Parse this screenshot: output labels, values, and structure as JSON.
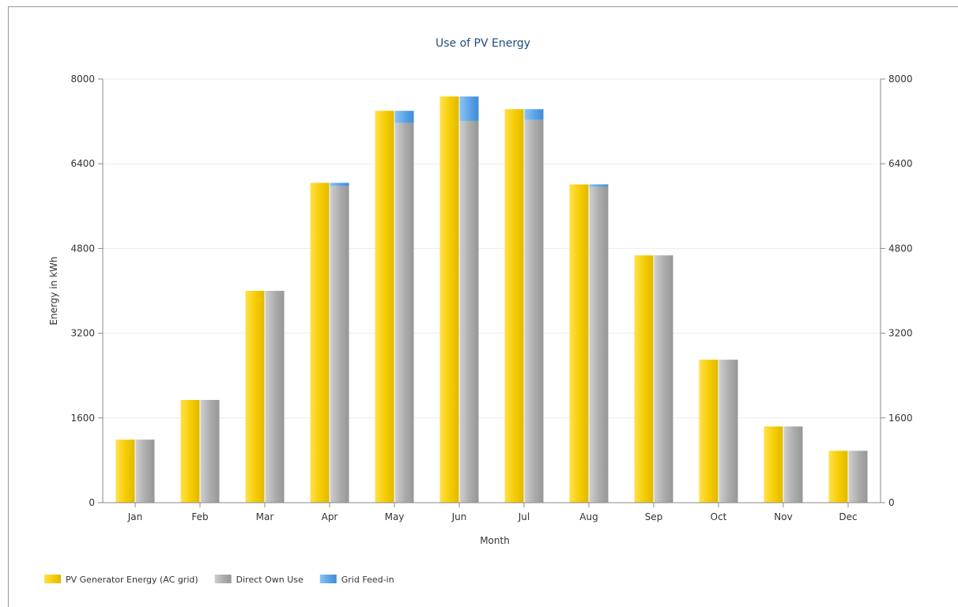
{
  "chart_data": {
    "type": "bar",
    "title": "Use of PV Energy",
    "xlabel": "Month",
    "ylabel": "Energy in kWh",
    "ylim": [
      0,
      8000
    ],
    "yticks": [
      0,
      1600,
      3200,
      4800,
      6400,
      8000
    ],
    "secondary_yaxis": true,
    "grid": true,
    "legend_position": "bottom-left",
    "categories": [
      "Jan",
      "Feb",
      "Mar",
      "Apr",
      "May",
      "Jun",
      "Jul",
      "Aug",
      "Sep",
      "Oct",
      "Nov",
      "Dec"
    ],
    "series": [
      {
        "name": "PV Generator Energy (AC grid)",
        "color": "#f5cc00",
        "stack": "pv",
        "values": [
          1190,
          1940,
          4000,
          6040,
          7400,
          7670,
          7430,
          6010,
          4670,
          2700,
          1440,
          980
        ]
      },
      {
        "name": "Direct Own Use",
        "color": "#aaaaaa",
        "stack": "use",
        "values": [
          1190,
          1940,
          4000,
          5980,
          7170,
          7210,
          7230,
          5970,
          4670,
          2700,
          1440,
          980
        ]
      },
      {
        "name": "Grid Feed-in",
        "color": "#5ba3e6",
        "stack": "use",
        "values": [
          0,
          0,
          0,
          60,
          230,
          460,
          200,
          40,
          0,
          0,
          0,
          0
        ]
      }
    ]
  }
}
